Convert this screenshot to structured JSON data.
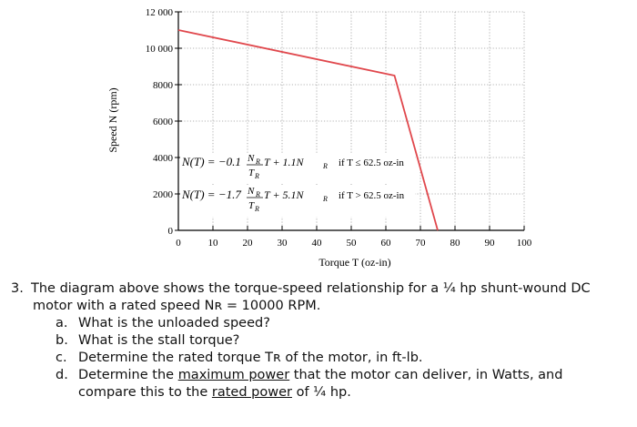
{
  "chart_data": {
    "type": "line",
    "xlabel": "Torque T (oz-in)",
    "ylabel": "Speed N (rpm)",
    "xlim": [
      0,
      100
    ],
    "ylim": [
      0,
      12000
    ],
    "x_ticks": [
      "0",
      "10",
      "20",
      "30",
      "40",
      "50",
      "60",
      "70",
      "80",
      "90",
      "100"
    ],
    "y_ticks": [
      "0",
      "2000",
      "4000",
      "6000",
      "8000",
      "10 000",
      "12 000"
    ],
    "grid": true,
    "series": [
      {
        "color": "#e0474c",
        "x": [
          0,
          62.5,
          75
        ],
        "y": [
          11000,
          8500,
          0
        ]
      }
    ],
    "annotations": [
      {
        "lhs": "N(T) = −0.1",
        "frac_num": "N",
        "frac_num_sub": "R",
        "frac_den": "T",
        "frac_den_sub": "R",
        "rest": "T + 1.1N",
        "rest_sub": "R",
        "cond": "if T ≤ 62.5 oz-in"
      },
      {
        "lhs": "N(T) = −1.7",
        "frac_num": "N",
        "frac_num_sub": "R",
        "frac_den": "T",
        "frac_den_sub": "R",
        "rest": "T + 5.1N",
        "rest_sub": "R",
        "cond": "if T > 62.5 oz-in"
      }
    ]
  },
  "problem": {
    "number": "3.",
    "intro_1": "The diagram above shows the torque-speed relationship for a ¼ hp shunt-wound DC",
    "intro_2": "motor with a rated speed Nʀ = 10000 RPM.",
    "items": [
      {
        "letter": "a.",
        "text": "What is the unloaded speed?"
      },
      {
        "letter": "b.",
        "text": "What is the stall torque?"
      },
      {
        "letter": "c.",
        "text": "Determine the rated torque Tʀ of the motor, in ft-lb."
      }
    ],
    "item_d_letter": "d.",
    "item_d_pre": "Determine the ",
    "item_d_u1": "maximum power",
    "item_d_mid": " that the motor can deliver, in Watts, and",
    "item_d_cont_pre": "compare this to the ",
    "item_d_u2": "rated power",
    "item_d_cont_post": " of ¼ hp."
  }
}
